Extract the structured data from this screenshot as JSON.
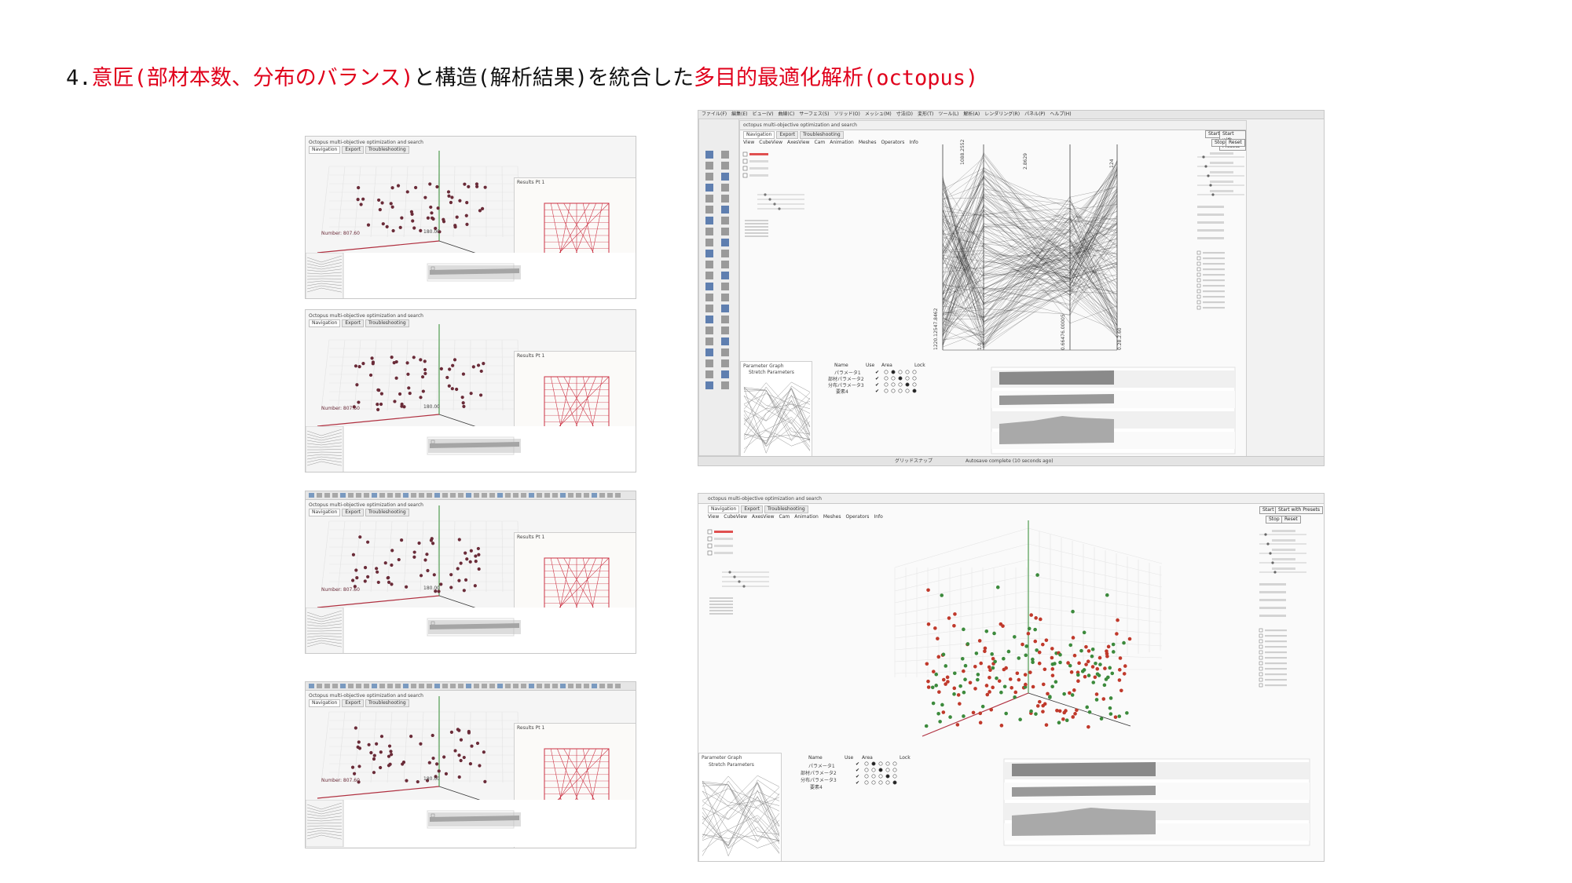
{
  "heading": {
    "prefix": "4.",
    "part1": "意匠(部材本数、分布のバランス)",
    "part2": "と構造(解析結果)を統合した",
    "part3": "多目的最適化解析(octopus)"
  },
  "colors": {
    "accent_red": "#e0001b",
    "text": "#111111",
    "point_dark": "#6a2b38",
    "point_green": "#3c8a3c",
    "point_red": "#c0392b"
  },
  "left_shots": {
    "window_label": "Octopus multi-objective optimization and search",
    "tabs": [
      "Navigation",
      "Export",
      "Troubleshooting"
    ],
    "axis_label": "Number: 807.60",
    "axis_value": "180.00",
    "viewport_title": "Results Pt 1"
  },
  "right_top": {
    "app_menu": [
      "ファイル(F)",
      "編集(E)",
      "ビュー(V)",
      "曲線(C)",
      "サーフェス(S)",
      "ソリッド(O)",
      "メッシュ(M)",
      "寸法(D)",
      "変形(T)",
      "ツール(L)",
      "解析(A)",
      "レンダリング(R)",
      "パネル(P)",
      "ヘルプ(H)"
    ],
    "window_title": "octopus multi-objective optimization and search",
    "tabs": [
      "Navigation",
      "Export",
      "Troubleshooting"
    ],
    "menus": [
      "View",
      "CubeView",
      "AxesView",
      "Cam",
      "Animation",
      "Meshes",
      "Operators",
      "Info"
    ],
    "buttons": {
      "start": "Start",
      "start_presets": "Start with Presets",
      "stop": "Stop",
      "reset": "Reset"
    },
    "axis_labels": [
      "1088.2552",
      "2.8629",
      "124"
    ],
    "axis_bottom_labels": [
      "1220.12547.8462",
      "1.0",
      "0.66476.00005",
      "0.28.2.60"
    ],
    "table": {
      "title": "Parameter Graph",
      "checkbox": "Stretch Parameters",
      "headers": [
        "Name",
        "Use",
        "Area",
        "Lock"
      ],
      "rows": [
        "パラメータ1",
        "部材パラメータ2",
        "分布パラメータ3",
        "要素4"
      ]
    },
    "statusbar": {
      "left": "グリッドスナップ",
      "right": "Autosave complete (10 seconds ago)"
    }
  },
  "right_bottom": {
    "window_title": "octopus multi-objective optimization and search",
    "tabs": [
      "Navigation",
      "Export",
      "Troubleshooting"
    ],
    "menus": [
      "View",
      "CubeView",
      "AxesView",
      "Cam",
      "Animation",
      "Meshes",
      "Operators",
      "Info"
    ],
    "buttons": {
      "start": "Start",
      "start_presets": "Start with Presets",
      "stop": "Stop",
      "reset": "Reset"
    },
    "table": {
      "title": "Parameter Graph",
      "checkbox": "Stretch Parameters",
      "headers": [
        "Name",
        "Use",
        "Area",
        "Lock"
      ],
      "rows": [
        "パラメータ1",
        "部材パラメータ2",
        "分布パラメータ3",
        "要素4"
      ]
    }
  }
}
